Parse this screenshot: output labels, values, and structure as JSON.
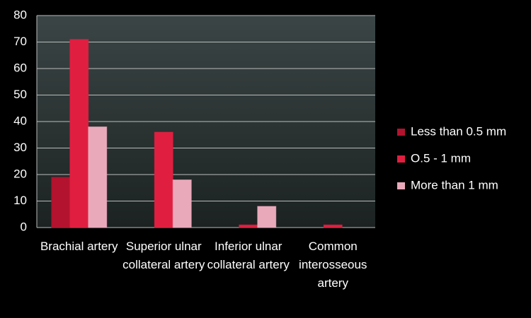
{
  "chart_data": {
    "type": "bar",
    "categories": [
      "Brachial artery",
      "Superior ulnar collateral artery",
      "Inferior ulnar collateral artery",
      "Common interosseous artery"
    ],
    "series": [
      {
        "name": "Less than 0.5 mm",
        "color": "#b3132e",
        "values": [
          19,
          0,
          0,
          0
        ]
      },
      {
        "name": "O.5 - 1 mm",
        "color": "#e01f40",
        "values": [
          71,
          36,
          1,
          1
        ]
      },
      {
        "name": "More than 1 mm",
        "color": "#eaa9bb",
        "values": [
          38,
          18,
          8,
          0
        ]
      }
    ],
    "ylim": [
      0,
      80
    ],
    "yticks": [
      0,
      10,
      20,
      30,
      40,
      50,
      60,
      70,
      80
    ],
    "grid": true,
    "legend": "right"
  }
}
